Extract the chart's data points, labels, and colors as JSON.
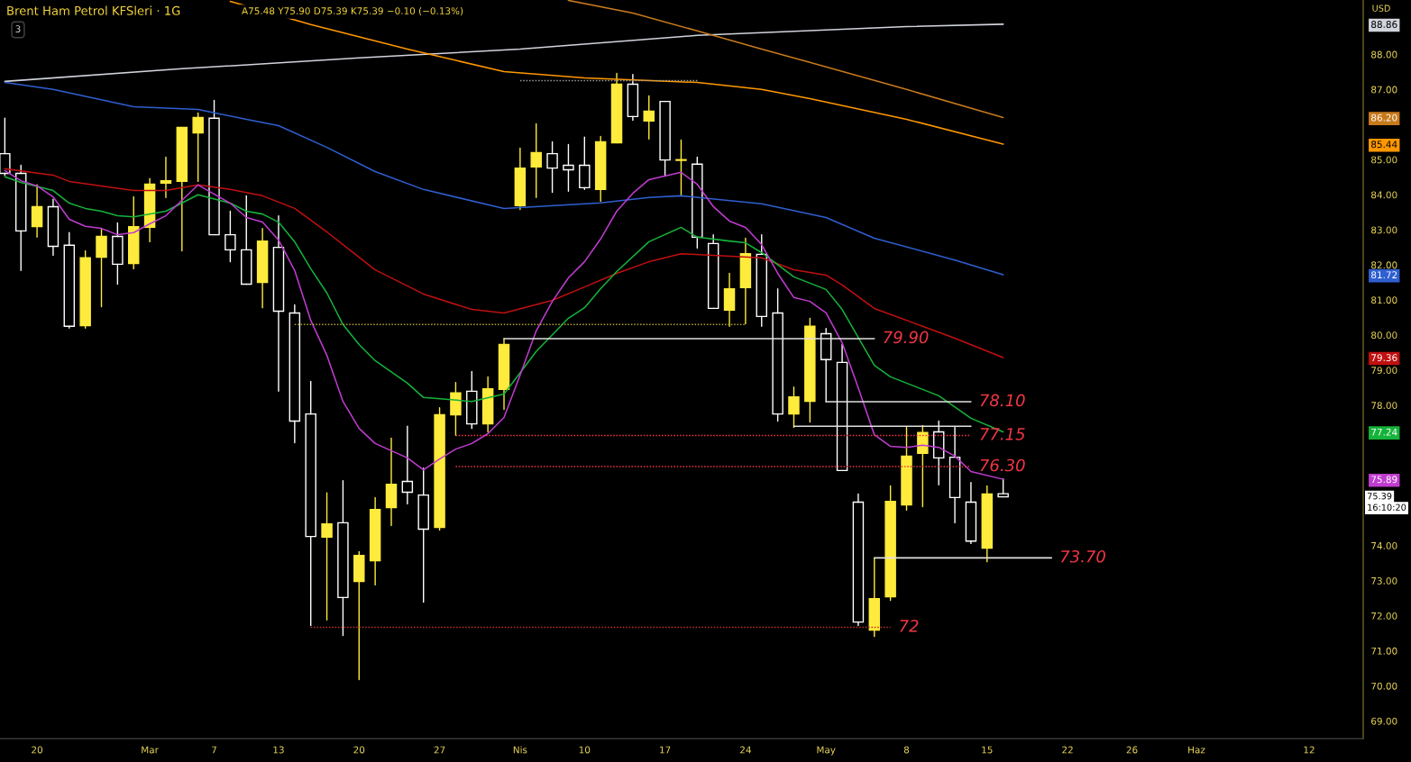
{
  "chart_data": {
    "type": "candlestick",
    "title": "Brent Ham Petrol KFSleri · 1G",
    "subtitle": "A75.48 Y75.90 D75.39 K75.39 −0.10 (−0.13%)",
    "categories": [
      null,
      null,
      "20",
      null,
      null,
      null,
      null,
      null,
      null,
      "Mar",
      null,
      null,
      null,
      "7",
      null,
      null,
      null,
      "13",
      null,
      null,
      null,
      null,
      "20",
      null,
      null,
      null,
      null,
      "27",
      null,
      null,
      null,
      null,
      "Nis",
      null,
      null,
      null,
      "10",
      null,
      null,
      null,
      null,
      "17",
      null,
      null,
      null,
      null,
      "24",
      null,
      null,
      null,
      null,
      "May",
      null,
      null,
      null,
      null,
      "8",
      null,
      null,
      null,
      null,
      "15",
      null,
      null,
      null,
      null,
      "22",
      null,
      null,
      null,
      "26",
      null,
      null,
      null,
      "Haz",
      null,
      null,
      null,
      null,
      null,
      null,
      "12",
      null,
      null,
      null
    ],
    "ohlc": [
      [
        85.17,
        86.18,
        84.55,
        84.61
      ],
      [
        84.61,
        84.84,
        81.84,
        82.97
      ],
      [
        83.09,
        84.28,
        82.79,
        83.66
      ],
      [
        83.66,
        83.87,
        82.27,
        82.53
      ],
      [
        82.56,
        82.92,
        80.2,
        80.25
      ],
      [
        80.27,
        82.4,
        80.2,
        82.2
      ],
      [
        82.22,
        83.02,
        80.81,
        82.81
      ],
      [
        82.81,
        83.2,
        81.45,
        82.02
      ],
      [
        82.04,
        83.94,
        81.89,
        83.09
      ],
      [
        83.07,
        84.46,
        82.66,
        84.3
      ],
      [
        84.33,
        85.07,
        83.92,
        84.4
      ],
      [
        84.38,
        85.92,
        82.4,
        85.92
      ],
      [
        85.76,
        86.33,
        84.38,
        86.2
      ],
      [
        86.18,
        86.69,
        82.86,
        82.86
      ],
      [
        82.86,
        83.53,
        82.09,
        82.43
      ],
      [
        82.43,
        83.97,
        81.45,
        81.45
      ],
      [
        81.5,
        83.04,
        80.78,
        82.68
      ],
      [
        82.5,
        83.4,
        78.4,
        80.68
      ],
      [
        80.63,
        80.86,
        76.93,
        77.55
      ],
      [
        77.75,
        78.68,
        71.72,
        74.26
      ],
      [
        74.24,
        75.5,
        71.88,
        74.62
      ],
      [
        74.65,
        75.85,
        71.44,
        72.52
      ],
      [
        72.98,
        73.83,
        70.18,
        73.72
      ],
      [
        73.57,
        75.37,
        72.88,
        75.03
      ],
      [
        75.08,
        77.06,
        74.57,
        75.75
      ],
      [
        75.83,
        77.4,
        75.19,
        75.52
      ],
      [
        75.44,
        76.21,
        72.39,
        74.47
      ],
      [
        74.52,
        77.93,
        74.44,
        77.73
      ],
      [
        77.73,
        78.65,
        77.14,
        78.35
      ],
      [
        78.4,
        78.96,
        77.34,
        77.47
      ],
      [
        77.47,
        78.81,
        77.24,
        78.47
      ],
      [
        78.45,
        79.9,
        77.88,
        79.73
      ],
      [
        83.69,
        85.33,
        83.58,
        84.76
      ],
      [
        84.79,
        86.02,
        83.92,
        85.2
      ],
      [
        85.17,
        85.51,
        84.07,
        84.76
      ],
      [
        84.84,
        85.43,
        84.1,
        84.71
      ],
      [
        84.84,
        85.64,
        84.15,
        84.2
      ],
      [
        84.15,
        85.66,
        83.81,
        85.51
      ],
      [
        85.48,
        87.46,
        85.48,
        87.15
      ],
      [
        87.15,
        87.43,
        86.12,
        86.23
      ],
      [
        86.1,
        86.82,
        85.59,
        86.38
      ],
      [
        86.66,
        86.66,
        84.53,
        84.99
      ],
      [
        84.98,
        85.56,
        83.97,
        85.0
      ],
      [
        84.87,
        85.07,
        82.48,
        82.79
      ],
      [
        82.61,
        82.86,
        80.76,
        80.76
      ],
      [
        80.71,
        81.76,
        80.25,
        81.32
      ],
      [
        81.35,
        82.76,
        80.32,
        82.32
      ],
      [
        82.3,
        82.86,
        80.25,
        80.53
      ],
      [
        80.63,
        81.32,
        77.55,
        77.75
      ],
      [
        77.75,
        78.52,
        77.37,
        78.24
      ],
      [
        78.11,
        80.48,
        77.52,
        80.25
      ],
      [
        80.04,
        80.19,
        78.1,
        79.3
      ],
      [
        79.22,
        79.73,
        76.14,
        76.14
      ],
      [
        75.24,
        75.47,
        71.72,
        71.82
      ],
      [
        71.59,
        73.65,
        71.41,
        72.49
      ],
      [
        72.54,
        75.7,
        72.44,
        75.26
      ],
      [
        75.16,
        77.37,
        75.01,
        76.55
      ],
      [
        76.63,
        77.42,
        75.11,
        77.22
      ],
      [
        77.24,
        77.55,
        75.73,
        76.5
      ],
      [
        76.52,
        77.37,
        74.65,
        75.37
      ],
      [
        75.24,
        75.8,
        74.06,
        74.13
      ],
      [
        73.93,
        75.7,
        73.54,
        75.47
      ],
      [
        75.48,
        75.9,
        75.39,
        75.39
      ],
      null,
      null,
      null,
      null,
      null,
      null,
      null,
      null,
      null,
      null,
      null,
      null,
      null,
      null,
      null,
      null,
      null,
      null,
      null,
      null,
      null,
      null
    ],
    "colors": [
      "#ffffff",
      "#ffffff",
      "#ffeb3b",
      "#ffffff",
      "#ffffff",
      "#ffeb3b",
      "#ffeb3b",
      "#ffffff",
      "#ffeb3b",
      "#ffeb3b",
      "#ffeb3b",
      "#ffeb3b",
      "#ffeb3b",
      "#ffffff",
      "#ffffff",
      "#ffffff",
      "#ffeb3b",
      "#ffffff",
      "#ffffff",
      "#ffffff",
      "#ffeb3b",
      "#ffffff",
      "#ffeb3b",
      "#ffeb3b",
      "#ffeb3b",
      "#ffffff",
      "#ffffff",
      "#ffeb3b",
      "#ffeb3b",
      "#ffffff",
      "#ffeb3b",
      "#ffeb3b",
      "#ffeb3b",
      "#ffeb3b",
      "#ffffff",
      "#ffffff",
      "#ffffff",
      "#ffeb3b",
      "#ffeb3b",
      "#ffffff",
      "#ffeb3b",
      "#ffffff",
      "#ffeb3b",
      "#ffffff",
      "#ffffff",
      "#ffeb3b",
      "#ffeb3b",
      "#ffffff",
      "#ffffff",
      "#ffeb3b",
      "#ffeb3b",
      "#ffffff",
      "#ffffff",
      "#ffffff",
      "#ffeb3b",
      "#ffeb3b",
      "#ffeb3b",
      "#ffeb3b",
      "#ffffff",
      "#ffffff",
      "#ffffff",
      "#ffeb3b",
      "#ffffff",
      null,
      null,
      null,
      null,
      null,
      null,
      null,
      null,
      null,
      null,
      null,
      null,
      null,
      null,
      null,
      null,
      null,
      null,
      null,
      null,
      null,
      null
    ],
    "value_labels": [
      null,
      null,
      null,
      null,
      null,
      null,
      null,
      null,
      null,
      null,
      null,
      null,
      null,
      null,
      null,
      null,
      null,
      null,
      null,
      null,
      null,
      null,
      null,
      null,
      null,
      null,
      null,
      null,
      null,
      null,
      null,
      null,
      null,
      null,
      null,
      null,
      null,
      null,
      null,
      null,
      null,
      null,
      null,
      null,
      null,
      null,
      null,
      null,
      null,
      null,
      null,
      null,
      null,
      null,
      null,
      null,
      null,
      null,
      null,
      null,
      null,
      null,
      "75.39",
      null,
      null,
      null,
      null,
      null,
      null,
      null,
      null,
      null,
      null,
      null,
      null,
      null,
      null,
      null,
      null,
      null,
      null,
      null,
      null,
      null,
      null
    ],
    "series": [
      {
        "type": "line",
        "color": "#d1d4dc",
        "values": [
          87.23,
          null,
          null,
          null,
          null,
          null,
          null,
          null,
          null,
          null,
          null,
          87.59,
          null,
          null,
          null,
          null,
          null,
          null,
          null,
          null,
          null,
          null,
          87.9,
          null,
          null,
          null,
          null,
          null,
          null,
          null,
          null,
          null,
          88.15,
          null,
          null,
          null,
          null,
          null,
          null,
          null,
          null,
          null,
          null,
          88.54,
          null,
          null,
          null,
          null,
          null,
          null,
          null,
          null,
          null,
          null,
          null,
          null,
          88.79,
          null,
          null,
          null,
          null,
          null,
          88.86,
          null,
          null,
          null,
          null,
          null,
          null,
          null,
          null,
          null,
          null,
          null,
          null,
          null,
          null,
          null,
          null,
          null,
          null,
          null,
          null,
          null,
          null
        ]
      },
      {
        "type": "line",
        "color": "#c77a1c",
        "values": [
          null,
          null,
          null,
          null,
          null,
          null,
          null,
          null,
          null,
          null,
          null,
          null,
          null,
          null,
          null,
          null,
          null,
          null,
          null,
          null,
          null,
          null,
          null,
          null,
          null,
          null,
          null,
          null,
          null,
          null,
          null,
          null,
          null,
          null,
          null,
          89.54,
          null,
          null,
          null,
          89.18,
          null,
          null,
          null,
          88.67,
          null,
          null,
          null,
          88.15,
          null,
          null,
          87.77,
          null,
          null,
          null,
          null,
          null,
          87.0,
          null,
          null,
          null,
          null,
          null,
          86.2,
          null,
          null,
          null,
          null,
          null,
          null,
          null,
          null,
          null,
          null,
          null,
          null,
          null,
          null,
          null,
          null,
          null,
          null,
          null,
          null,
          null,
          null
        ]
      },
      {
        "type": "line",
        "color": "#ff9800",
        "values": [
          null,
          null,
          null,
          null,
          null,
          null,
          null,
          null,
          null,
          null,
          null,
          null,
          null,
          null,
          89.51,
          null,
          null,
          null,
          null,
          88.85,
          null,
          null,
          null,
          null,
          null,
          88.15,
          null,
          null,
          null,
          null,
          null,
          87.51,
          null,
          null,
          null,
          null,
          87.33,
          null,
          null,
          null,
          null,
          null,
          null,
          87.2,
          null,
          null,
          null,
          87.0,
          null,
          null,
          86.74,
          null,
          null,
          null,
          null,
          null,
          86.15,
          null,
          null,
          null,
          null,
          null,
          85.44,
          null,
          null,
          null,
          null,
          null,
          null,
          null,
          null,
          null,
          null,
          null,
          null,
          null,
          null,
          null,
          null,
          null,
          null,
          null,
          null,
          null,
          null
        ]
      },
      {
        "type": "line",
        "color": "#2f5fd0",
        "values": [
          87.2,
          null,
          null,
          87.0,
          null,
          null,
          null,
          null,
          86.51,
          null,
          null,
          null,
          86.43,
          null,
          null,
          86.15,
          null,
          85.97,
          null,
          null,
          85.35,
          null,
          null,
          84.66,
          null,
          null,
          84.15,
          null,
          null,
          null,
          null,
          83.61,
          null,
          null,
          null,
          null,
          null,
          83.77,
          null,
          null,
          83.92,
          null,
          83.97,
          null,
          null,
          null,
          null,
          83.74,
          null,
          null,
          null,
          83.35,
          null,
          null,
          82.76,
          null,
          null,
          null,
          null,
          82.14,
          null,
          null,
          81.72,
          null,
          null,
          null,
          null,
          null,
          null,
          null,
          null,
          null,
          null,
          null,
          null,
          null,
          null,
          null,
          null,
          null,
          null,
          null,
          null,
          null,
          null
        ]
      },
      {
        "type": "line",
        "color": "#c01010",
        "values": [
          84.74,
          null,
          null,
          84.56,
          84.38,
          null,
          null,
          null,
          84.12,
          null,
          84.12,
          null,
          84.28,
          null,
          84.15,
          null,
          83.97,
          null,
          83.61,
          null,
          82.94,
          null,
          82.22,
          81.86,
          null,
          null,
          81.17,
          null,
          null,
          80.73,
          null,
          80.63,
          null,
          null,
          80.99,
          null,
          81.37,
          null,
          81.76,
          null,
          82.09,
          null,
          82.32,
          null,
          null,
          null,
          null,
          82.2,
          null,
          81.86,
          null,
          81.71,
          81.43,
          null,
          80.76,
          null,
          null,
          80.25,
          null,
          79.91,
          null,
          null,
          79.36,
          null,
          null,
          null,
          null,
          null,
          null,
          null,
          null,
          null,
          null,
          null,
          null,
          null,
          null,
          null,
          null,
          null,
          null,
          null,
          null,
          null,
          null
        ]
      },
      {
        "type": "line",
        "color": "#16b33a",
        "values": [
          84.51,
          84.35,
          null,
          84.12,
          83.76,
          83.61,
          83.53,
          83.4,
          83.37,
          null,
          83.53,
          null,
          84.0,
          null,
          83.76,
          83.53,
          83.45,
          83.22,
          82.66,
          81.89,
          81.2,
          80.3,
          79.73,
          79.27,
          null,
          78.63,
          78.22,
          null,
          null,
          78.11,
          null,
          78.32,
          null,
          79.53,
          null,
          80.48,
          80.78,
          81.32,
          81.81,
          null,
          82.66,
          null,
          83.07,
          82.79,
          null,
          82.68,
          82.63,
          82.35,
          null,
          81.66,
          null,
          81.3,
          80.73,
          null,
          79.14,
          78.81,
          null,
          78.45,
          78.27,
          null,
          77.63,
          null,
          77.24,
          null,
          null,
          null,
          null,
          null,
          null,
          null,
          null,
          null,
          null,
          null,
          null,
          null,
          null,
          null,
          null,
          null,
          null,
          null,
          null,
          null,
          null
        ]
      },
      {
        "type": "line",
        "color": "#c03cd0",
        "values": [
          84.69,
          84.4,
          84.25,
          83.94,
          83.3,
          83.1,
          83.04,
          82.86,
          82.92,
          83.17,
          83.4,
          null,
          84.28,
          null,
          83.76,
          83.35,
          83.22,
          82.71,
          81.84,
          80.42,
          79.42,
          78.11,
          77.34,
          76.91,
          null,
          76.5,
          76.16,
          76.47,
          76.75,
          76.91,
          77.19,
          77.65,
          78.86,
          80.12,
          80.96,
          81.63,
          82.09,
          82.74,
          83.53,
          84.04,
          84.43,
          null,
          84.64,
          84.3,
          83.66,
          83.25,
          83.07,
          82.58,
          81.76,
          81.07,
          80.96,
          80.63,
          79.78,
          78.5,
          77.16,
          76.83,
          76.8,
          76.86,
          76.8,
          76.55,
          76.11,
          null,
          75.89,
          null,
          null,
          null,
          null,
          null,
          null,
          null,
          null,
          null,
          null,
          null,
          null,
          null,
          null,
          null,
          null,
          null,
          null,
          null,
          null,
          null,
          null
        ]
      },
      {
        "type": "line",
        "color": "#9a9a9a",
        "line_style": "dotted",
        "values": [
          null,
          null,
          null,
          null,
          null,
          null,
          null,
          null,
          null,
          null,
          null,
          null,
          null,
          null,
          null,
          null,
          null,
          null,
          null,
          null,
          null,
          null,
          null,
          null,
          null,
          null,
          null,
          null,
          null,
          null,
          null,
          null,
          87.25,
          87.25,
          87.25,
          87.25,
          87.25,
          87.25,
          87.25,
          87.25,
          87.25,
          87.25,
          87.25,
          87.25,
          null,
          null,
          null,
          null,
          null,
          null,
          null,
          null,
          null,
          null,
          null,
          null,
          null,
          null,
          null,
          null,
          null,
          null,
          null,
          null,
          null,
          null,
          null,
          null,
          null,
          null,
          null,
          null,
          null,
          null,
          null,
          null,
          null,
          null,
          null,
          null,
          null,
          null,
          null,
          null,
          null
        ]
      },
      {
        "type": "line",
        "color": "#b0a030",
        "line_style": "dotted",
        "values": [
          null,
          null,
          null,
          null,
          null,
          null,
          null,
          null,
          null,
          null,
          null,
          null,
          null,
          null,
          null,
          null,
          null,
          null,
          80.3,
          80.3,
          80.3,
          80.3,
          80.3,
          80.3,
          80.3,
          80.3,
          80.3,
          80.3,
          80.3,
          80.3,
          80.3,
          80.3,
          80.3,
          80.3,
          80.3,
          80.3,
          80.3,
          80.3,
          80.3,
          80.3,
          80.3,
          80.3,
          80.3,
          80.3,
          80.3,
          80.3,
          80.3,
          null,
          null,
          null,
          null,
          null,
          null,
          null,
          null,
          null,
          null,
          null,
          null,
          null,
          null,
          null,
          null,
          null,
          null,
          null,
          null,
          null,
          null,
          null,
          null,
          null,
          null,
          null,
          null,
          null,
          null,
          null,
          null,
          null,
          null,
          null,
          null,
          null,
          null
        ]
      },
      {
        "type": "line",
        "name": "79.90",
        "color": "#e0e0e0",
        "values": [
          null,
          null,
          null,
          null,
          null,
          null,
          null,
          null,
          null,
          null,
          null,
          null,
          null,
          null,
          null,
          null,
          null,
          null,
          null,
          null,
          null,
          null,
          null,
          null,
          null,
          null,
          null,
          null,
          null,
          null,
          null,
          79.9,
          79.9,
          79.9,
          79.9,
          79.9,
          79.9,
          79.9,
          79.9,
          79.9,
          79.9,
          79.9,
          79.9,
          79.9,
          79.9,
          79.9,
          79.9,
          79.9,
          79.9,
          79.9,
          79.9,
          79.9,
          79.9,
          79.9,
          79.9,
          null,
          null,
          null,
          null,
          null,
          null,
          null,
          null,
          null,
          null,
          null,
          null,
          null,
          null,
          null,
          null,
          null,
          null,
          null,
          null,
          null,
          null,
          null,
          null,
          null,
          null,
          null,
          null,
          null,
          null
        ]
      },
      {
        "type": "line",
        "name": "78.10",
        "color": "#e0e0e0",
        "values": [
          null,
          null,
          null,
          null,
          null,
          null,
          null,
          null,
          null,
          null,
          null,
          null,
          null,
          null,
          null,
          null,
          null,
          null,
          null,
          null,
          null,
          null,
          null,
          null,
          null,
          null,
          null,
          null,
          null,
          null,
          null,
          null,
          null,
          null,
          null,
          null,
          null,
          null,
          null,
          null,
          null,
          null,
          null,
          null,
          null,
          null,
          null,
          null,
          null,
          null,
          null,
          78.1,
          78.1,
          78.1,
          78.1,
          78.1,
          78.1,
          78.1,
          78.1,
          78.1,
          78.1,
          null,
          null,
          null,
          null,
          null,
          null,
          null,
          null,
          null,
          null,
          null,
          null,
          null,
          null,
          null,
          null,
          null,
          null,
          null,
          null,
          null,
          null,
          null,
          null
        ]
      },
      {
        "type": "line",
        "color": "#e0e0e0",
        "values": [
          null,
          null,
          null,
          null,
          null,
          null,
          null,
          null,
          null,
          null,
          null,
          null,
          null,
          null,
          null,
          null,
          null,
          null,
          null,
          null,
          null,
          null,
          null,
          null,
          null,
          null,
          null,
          null,
          null,
          null,
          null,
          null,
          null,
          null,
          null,
          null,
          null,
          null,
          null,
          null,
          null,
          null,
          null,
          null,
          null,
          null,
          null,
          null,
          null,
          77.4,
          77.4,
          77.4,
          77.4,
          77.4,
          77.4,
          77.4,
          77.4,
          77.4,
          77.4,
          77.4,
          77.4,
          null,
          null,
          null,
          null,
          null,
          null,
          null,
          null,
          null,
          null,
          null,
          null,
          null,
          null,
          null,
          null,
          null,
          null,
          null,
          null,
          null,
          null,
          null,
          null
        ]
      },
      {
        "type": "line",
        "name": "77.15",
        "color": "#f23645",
        "line_style": "dotted",
        "values": [
          null,
          null,
          null,
          null,
          null,
          null,
          null,
          null,
          null,
          null,
          null,
          null,
          null,
          null,
          null,
          null,
          null,
          null,
          null,
          null,
          null,
          null,
          null,
          null,
          null,
          null,
          null,
          null,
          77.14,
          77.14,
          77.14,
          77.14,
          77.14,
          77.14,
          77.14,
          77.14,
          77.14,
          77.14,
          77.14,
          77.14,
          77.14,
          77.14,
          77.14,
          77.14,
          77.14,
          77.14,
          77.14,
          77.14,
          77.14,
          77.14,
          77.14,
          77.14,
          77.14,
          77.14,
          77.14,
          77.14,
          77.14,
          77.14,
          77.14,
          77.14,
          77.14,
          null,
          null,
          null,
          null,
          null,
          null,
          null,
          null,
          null,
          null,
          null,
          null,
          null,
          null,
          null,
          null,
          null,
          null,
          null,
          null,
          null,
          null,
          null,
          null
        ]
      },
      {
        "type": "line",
        "name": "76.30",
        "color": "#f23645",
        "line_style": "dotted",
        "values": [
          null,
          null,
          null,
          null,
          null,
          null,
          null,
          null,
          null,
          null,
          null,
          null,
          null,
          null,
          null,
          null,
          null,
          null,
          null,
          null,
          null,
          null,
          null,
          null,
          null,
          null,
          null,
          null,
          76.25,
          76.25,
          76.25,
          76.25,
          76.25,
          76.25,
          76.25,
          76.25,
          76.25,
          76.25,
          76.25,
          76.25,
          76.25,
          76.25,
          76.25,
          76.25,
          76.25,
          76.25,
          76.25,
          76.25,
          76.25,
          76.25,
          76.25,
          76.25,
          76.25,
          76.25,
          76.25,
          76.25,
          76.25,
          76.25,
          76.25,
          76.25,
          76.25,
          null,
          null,
          null,
          null,
          null,
          null,
          null,
          null,
          null,
          null,
          null,
          null,
          null,
          null,
          null,
          null,
          null,
          null,
          null,
          null,
          null,
          null,
          null,
          null
        ]
      },
      {
        "type": "line",
        "name": "73.70",
        "color": "#e0e0e0",
        "values": [
          null,
          null,
          null,
          null,
          null,
          null,
          null,
          null,
          null,
          null,
          null,
          null,
          null,
          null,
          null,
          null,
          null,
          null,
          null,
          null,
          null,
          null,
          null,
          null,
          null,
          null,
          null,
          null,
          null,
          null,
          null,
          null,
          null,
          null,
          null,
          null,
          null,
          null,
          null,
          null,
          null,
          null,
          null,
          null,
          null,
          null,
          null,
          null,
          null,
          null,
          null,
          null,
          null,
          null,
          73.65,
          73.65,
          73.65,
          73.65,
          73.65,
          73.65,
          73.65,
          73.65,
          73.65,
          73.65,
          73.65,
          73.65,
          null,
          null,
          null,
          null,
          null,
          null,
          null,
          null,
          null,
          null,
          null,
          null,
          null,
          null,
          null,
          null,
          null,
          null,
          null
        ]
      },
      {
        "type": "line",
        "name": "72",
        "color": "#c03030",
        "line_style": "dotted",
        "values": [
          null,
          null,
          null,
          null,
          null,
          null,
          null,
          null,
          null,
          null,
          null,
          null,
          null,
          null,
          null,
          null,
          null,
          null,
          null,
          71.67,
          71.67,
          71.67,
          71.67,
          71.67,
          71.67,
          71.67,
          71.67,
          71.67,
          71.67,
          71.67,
          71.67,
          71.67,
          71.67,
          71.67,
          71.67,
          71.67,
          71.67,
          71.67,
          71.67,
          71.67,
          71.67,
          71.67,
          71.67,
          71.67,
          71.67,
          71.67,
          71.67,
          71.67,
          71.67,
          71.67,
          71.67,
          71.67,
          71.67,
          71.67,
          71.67,
          71.67,
          null,
          null,
          null,
          null,
          null,
          null,
          null,
          null,
          null,
          null,
          null,
          null,
          null,
          null,
          null,
          null,
          null,
          null,
          null,
          null,
          null,
          null,
          null,
          null,
          null,
          null,
          null,
          null,
          null
        ]
      }
    ],
    "annotations": [
      "3",
      "USD",
      "16:10:20"
    ],
    "ylim": [
      68.5,
      89.55
    ],
    "yticks": [
      {
        "value": 69,
        "label": "69.00"
      },
      {
        "value": 70,
        "label": "70.00"
      },
      {
        "value": 71,
        "label": "71.00"
      },
      {
        "value": 72,
        "label": "72.00"
      },
      {
        "value": 73,
        "label": "73.00"
      },
      {
        "value": 74,
        "label": "74.00"
      },
      {
        "value": 75.89,
        "label": "75.89"
      },
      {
        "value": 77.24,
        "label": "77.24"
      },
      {
        "value": 79.36,
        "label": "79.36"
      },
      {
        "value": 81.72,
        "label": "81.72"
      },
      {
        "value": 85.44,
        "label": "85.44"
      },
      {
        "value": 86.2,
        "label": "86.20"
      },
      {
        "value": 88.86,
        "label": "88.86"
      },
      {
        "value": 78,
        "label": "78.00"
      },
      {
        "value": 79,
        "label": "79.00"
      },
      {
        "value": 80,
        "label": "80.00"
      },
      {
        "value": 81,
        "label": "81.00"
      },
      {
        "value": 82,
        "label": "82.00"
      },
      {
        "value": 83,
        "label": "83.00"
      },
      {
        "value": 84,
        "label": "84.00"
      },
      {
        "value": 85,
        "label": "85.00"
      },
      {
        "value": 87,
        "label": "87.00"
      },
      {
        "value": 88,
        "label": "88.00"
      }
    ]
  }
}
